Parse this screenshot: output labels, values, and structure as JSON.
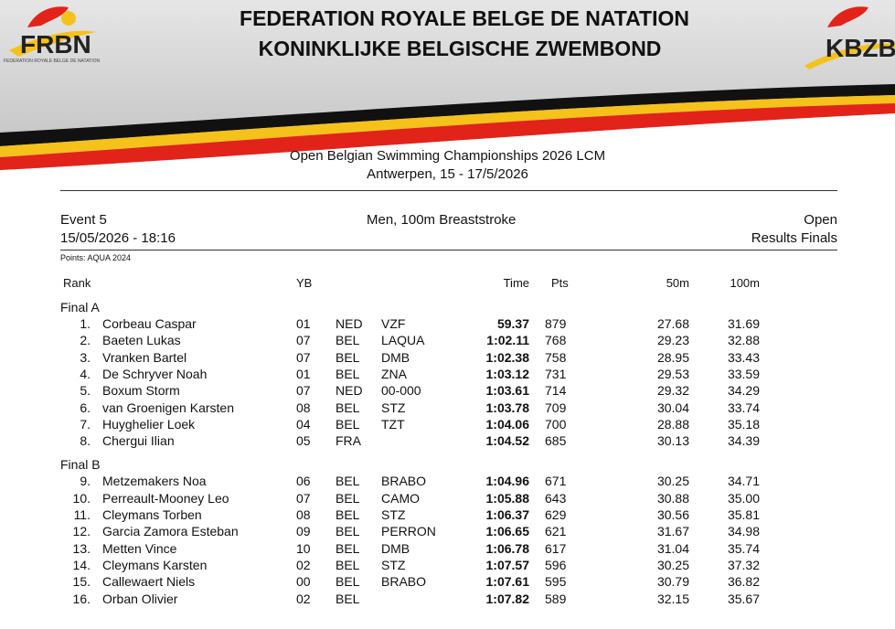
{
  "header": {
    "logo_left": "FRBN",
    "logo_left_sub": "FEDERATION ROYALE BELGE DE NATATION",
    "logo_right": "KBZB",
    "title_line1": "FEDERATION ROYALE BELGE DE NATATION",
    "title_line2": "KONINKLIJKE BELGISCHE ZWEMBOND"
  },
  "meet": {
    "name": "Open Belgian Swimming Championships 2026 LCM",
    "place": "Antwerpen, 15 - 17/5/2026"
  },
  "event": {
    "number": "Event 5",
    "name": "Men, 100m Breaststroke",
    "category": "Open",
    "datetime": "15/05/2026 - 18:16",
    "session": "Results Finals",
    "points": "Points: AQUA 2024"
  },
  "columns": {
    "rank": "Rank",
    "yb": "YB",
    "time": "Time",
    "pts": "Pts",
    "s50": "50m",
    "s100": "100m"
  },
  "table": {
    "groups": [
      {
        "label": "Final A",
        "rows": [
          {
            "rank": "1.",
            "name": "Corbeau Caspar",
            "yb": "01",
            "nat": "NED",
            "club": "VZF",
            "time": "59.37",
            "pts": "879",
            "s50": "27.68",
            "s100": "31.69"
          },
          {
            "rank": "2.",
            "name": "Baeten Lukas",
            "yb": "07",
            "nat": "BEL",
            "club": "LAQUA",
            "time": "1:02.11",
            "pts": "768",
            "s50": "29.23",
            "s100": "32.88"
          },
          {
            "rank": "3.",
            "name": "Vranken Bartel",
            "yb": "07",
            "nat": "BEL",
            "club": "DMB",
            "time": "1:02.38",
            "pts": "758",
            "s50": "28.95",
            "s100": "33.43"
          },
          {
            "rank": "4.",
            "name": "De Schryver Noah",
            "yb": "01",
            "nat": "BEL",
            "club": "ZNA",
            "time": "1:03.12",
            "pts": "731",
            "s50": "29.53",
            "s100": "33.59"
          },
          {
            "rank": "5.",
            "name": "Boxum Storm",
            "yb": "07",
            "nat": "NED",
            "club": "00-000",
            "time": "1:03.61",
            "pts": "714",
            "s50": "29.32",
            "s100": "34.29"
          },
          {
            "rank": "6.",
            "name": "van Groenigen Karsten",
            "yb": "08",
            "nat": "BEL",
            "club": "STZ",
            "time": "1:03.78",
            "pts": "709",
            "s50": "30.04",
            "s100": "33.74"
          },
          {
            "rank": "7.",
            "name": "Huyghelier Loek",
            "yb": "04",
            "nat": "BEL",
            "club": "TZT",
            "time": "1:04.06",
            "pts": "700",
            "s50": "28.88",
            "s100": "35.18"
          },
          {
            "rank": "8.",
            "name": "Chergui Ilian",
            "yb": "05",
            "nat": "FRA",
            "time": "1:04.52",
            "pts": "685",
            "s50": "30.13",
            "s100": "34.39"
          }
        ]
      },
      {
        "label": "Final B",
        "rows": [
          {
            "rank": "9.",
            "name": "Metzemakers Noa",
            "yb": "06",
            "nat": "BEL",
            "club": "BRABO",
            "time": "1:04.96",
            "pts": "671",
            "s50": "30.25",
            "s100": "34.71"
          },
          {
            "rank": "10.",
            "name": "Perreault-Mooney Leo",
            "yb": "07",
            "nat": "BEL",
            "club": "CAMO",
            "time": "1:05.88",
            "pts": "643",
            "s50": "30.88",
            "s100": "35.00"
          },
          {
            "rank": "11.",
            "name": "Cleymans Torben",
            "yb": "08",
            "nat": "BEL",
            "club": "STZ",
            "time": "1:06.37",
            "pts": "629",
            "s50": "30.56",
            "s100": "35.81"
          },
          {
            "rank": "12.",
            "name": "Garcia Zamora Esteban",
            "yb": "09",
            "nat": "BEL",
            "club": "PERRON",
            "time": "1:06.65",
            "pts": "621",
            "s50": "31.67",
            "s100": "34.98"
          },
          {
            "rank": "13.",
            "name": "Metten Vince",
            "yb": "10",
            "nat": "BEL",
            "club": "DMB",
            "time": "1:06.78",
            "pts": "617",
            "s50": "31.04",
            "s100": "35.74"
          },
          {
            "rank": "14.",
            "name": "Cleymans Karsten",
            "yb": "02",
            "nat": "BEL",
            "club": "STZ",
            "time": "1:07.57",
            "pts": "596",
            "s50": "30.25",
            "s100": "37.32"
          },
          {
            "rank": "15.",
            "name": "Callewaert Niels",
            "yb": "00",
            "nat": "BEL",
            "club": "BRABO",
            "time": "1:07.61",
            "pts": "595",
            "s50": "30.79",
            "s100": "36.82"
          },
          {
            "rank": "16.",
            "name": "Orban Olivier",
            "yb": "02",
            "nat": "BEL",
            "time": "1:07.82",
            "pts": "589",
            "s50": "32.15",
            "s100": "35.67"
          }
        ]
      }
    ]
  }
}
